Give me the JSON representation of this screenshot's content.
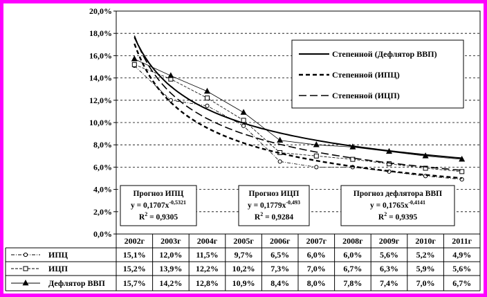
{
  "chart_data": {
    "type": "line",
    "categories": [
      "2002г",
      "2003г",
      "2004г",
      "2005г",
      "2006г",
      "2007г",
      "2008г",
      "2009г",
      "2010г",
      "2011г"
    ],
    "ylim": [
      0,
      20
    ],
    "y_ticks": [
      "0,0%",
      "2,0%",
      "4,0%",
      "6,0%",
      "8,0%",
      "10,0%",
      "12,0%",
      "14,0%",
      "16,0%",
      "18,0%",
      "20,0%"
    ],
    "grid": "horizontal dashed",
    "series": [
      {
        "name": "ИПЦ",
        "marker": "circle",
        "line": "dash-dot",
        "values": [
          15.1,
          12.0,
          11.5,
          9.7,
          6.5,
          6.0,
          6.0,
          5.6,
          5.2,
          4.9
        ],
        "table_values": [
          "15,1%",
          "12,0%",
          "11,5%",
          "9,7%",
          "6,5%",
          "6,0%",
          "6,0%",
          "5,6%",
          "5,2%",
          "4,9%"
        ]
      },
      {
        "name": "ИЦП",
        "marker": "square",
        "line": "dashed",
        "values": [
          15.2,
          13.9,
          12.2,
          10.2,
          7.3,
          7.0,
          6.7,
          6.3,
          5.9,
          5.6
        ],
        "table_values": [
          "15,2%",
          "13,9%",
          "12,2%",
          "10,2%",
          "7,3%",
          "7,0%",
          "6,7%",
          "6,3%",
          "5,9%",
          "5,6%"
        ]
      },
      {
        "name": "Дефлятор ВВП",
        "marker": "triangle",
        "line": "solid",
        "values": [
          15.7,
          14.2,
          12.8,
          10.9,
          8.4,
          8.0,
          7.8,
          7.4,
          7.0,
          6.7
        ],
        "table_values": [
          "15,7%",
          "14,2%",
          "12,8%",
          "10,9%",
          "8,4%",
          "8,0%",
          "7,8%",
          "7,4%",
          "7,0%",
          "6,7%"
        ]
      }
    ],
    "trendlines": [
      {
        "label": "Степенной (Дефлятор ВВП)",
        "style": "solid",
        "a": 0.1765,
        "b": -0.4141
      },
      {
        "label": "Степенной (ИПЦ)",
        "style": "dashed",
        "a": 0.1707,
        "b": -0.5321
      },
      {
        "label": "Степенной (ИЦП)",
        "style": "long-dashed",
        "a": 0.1779,
        "b": -0.493
      }
    ],
    "annotations": [
      {
        "title": "Прогноз ИПЦ",
        "eq_prefix": "y = 0,1707x",
        "exponent": "-0,5321",
        "r2_prefix": "R",
        "r2_suffix": " = 0,9305"
      },
      {
        "title": "Прогноз ИЦП",
        "eq_prefix": "y = 0,1779x",
        "exponent": "-0,493",
        "r2_prefix": "R",
        "r2_suffix": " = 0,9284"
      },
      {
        "title": "Прогноз дефлятора ВВП",
        "eq_prefix": "y = 0,1765x",
        "exponent": "-0,4141",
        "r2_prefix": "R",
        "r2_suffix": " = 0,9395"
      }
    ],
    "legend_position": "top-right"
  }
}
